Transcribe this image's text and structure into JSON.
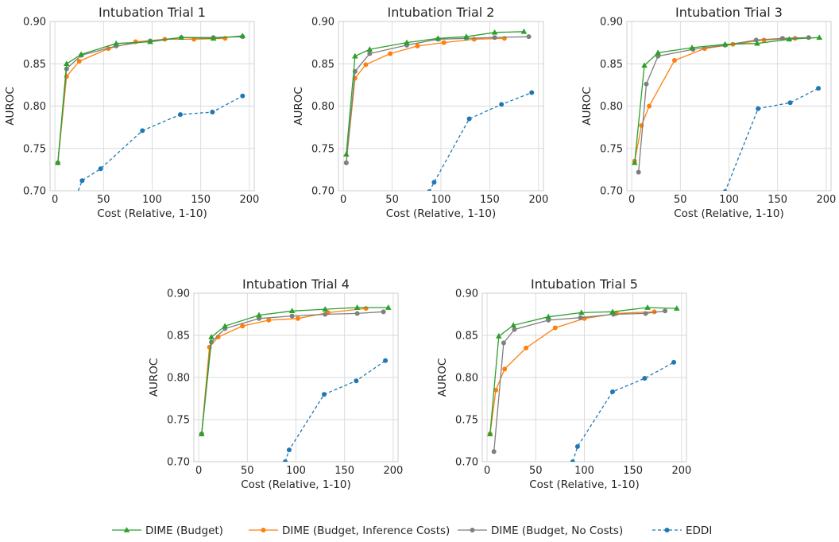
{
  "legend": [
    {
      "name": "DIME (Budget)",
      "color": "#2ca02c",
      "marker": "triangle",
      "dash": false
    },
    {
      "name": "DIME (Budget, Inference Costs)",
      "color": "#ff7f0e",
      "marker": "circle",
      "dash": false
    },
    {
      "name": "DIME (Budget, No Costs)",
      "color": "#7f7f7f",
      "marker": "circle",
      "dash": false
    },
    {
      "name": "EDDI",
      "color": "#1f77b4",
      "marker": "circle",
      "dash": true
    }
  ],
  "chart_data": [
    {
      "type": "line",
      "title": "Intubation Trial 1",
      "xlabel": "Cost (Relative, 1-10)",
      "ylabel": "AUROC",
      "xlim": [
        -5,
        205
      ],
      "ylim": [
        0.7,
        0.9
      ],
      "xticks": [
        0,
        50,
        100,
        150,
        200
      ],
      "yticks": [
        0.7,
        0.75,
        0.8,
        0.85,
        0.9
      ],
      "grid": true,
      "series": [
        {
          "name": "DIME (Budget)",
          "x": [
            3,
            12,
            27,
            63,
            98,
            130,
            163,
            193
          ],
          "y": [
            0.733,
            0.85,
            0.861,
            0.874,
            0.876,
            0.881,
            0.88,
            0.883
          ]
        },
        {
          "name": "DIME (Budget, Inference Costs)",
          "x": [
            3,
            12,
            25,
            55,
            83,
            113,
            143,
            175
          ],
          "y": [
            0.733,
            0.835,
            0.853,
            0.868,
            0.876,
            0.879,
            0.879,
            0.88
          ]
        },
        {
          "name": "DIME (Budget, No Costs)",
          "x": [
            3,
            12,
            27,
            63,
            98,
            130,
            163,
            193
          ],
          "y": [
            0.733,
            0.844,
            0.86,
            0.871,
            0.877,
            0.881,
            0.881,
            0.882
          ]
        },
        {
          "name": "EDDI",
          "x": [
            22,
            28,
            47,
            90,
            129,
            162,
            193
          ],
          "y": [
            0.694,
            0.712,
            0.726,
            0.771,
            0.79,
            0.793,
            0.812
          ]
        }
      ]
    },
    {
      "type": "line",
      "title": "Intubation Trial 2",
      "xlabel": "Cost (Relative, 1-10)",
      "ylabel": "AUROC",
      "xlim": [
        -5,
        205
      ],
      "ylim": [
        0.7,
        0.9
      ],
      "xticks": [
        0,
        50,
        100,
        150,
        200
      ],
      "yticks": [
        0.7,
        0.75,
        0.8,
        0.85,
        0.9
      ],
      "grid": true,
      "series": [
        {
          "name": "DIME (Budget)",
          "x": [
            3,
            12,
            27,
            65,
            97,
            126,
            155,
            185
          ],
          "y": [
            0.743,
            0.859,
            0.867,
            0.875,
            0.88,
            0.882,
            0.887,
            0.888
          ]
        },
        {
          "name": "DIME (Budget, Inference Costs)",
          "x": [
            3,
            12,
            23,
            48,
            76,
            103,
            134,
            165
          ],
          "y": [
            0.733,
            0.833,
            0.849,
            0.862,
            0.871,
            0.875,
            0.879,
            0.88
          ]
        },
        {
          "name": "DIME (Budget, No Costs)",
          "x": [
            3,
            12,
            27,
            65,
            97,
            126,
            155,
            190
          ],
          "y": [
            0.733,
            0.841,
            0.862,
            0.872,
            0.879,
            0.88,
            0.881,
            0.882
          ]
        },
        {
          "name": "EDDI",
          "x": [
            88,
            93,
            129,
            162,
            193
          ],
          "y": [
            0.699,
            0.71,
            0.785,
            0.802,
            0.816
          ]
        }
      ]
    },
    {
      "type": "line",
      "title": "Intubation Trial 3",
      "xlabel": "Cost (Relative, 1-10)",
      "ylabel": "AUROC",
      "xlim": [
        -5,
        205
      ],
      "ylim": [
        0.7,
        0.9
      ],
      "xticks": [
        0,
        50,
        100,
        150,
        200
      ],
      "yticks": [
        0.7,
        0.75,
        0.8,
        0.85,
        0.9
      ],
      "grid": true,
      "series": [
        {
          "name": "DIME (Budget)",
          "x": [
            3,
            13,
            27,
            62,
            96,
            129,
            162,
            193
          ],
          "y": [
            0.733,
            0.848,
            0.863,
            0.869,
            0.873,
            0.874,
            0.879,
            0.881
          ]
        },
        {
          "name": "DIME (Budget, Inference Costs)",
          "x": [
            3,
            10,
            18,
            44,
            75,
            104,
            136,
            168
          ],
          "y": [
            0.735,
            0.777,
            0.8,
            0.854,
            0.868,
            0.873,
            0.878,
            0.88
          ]
        },
        {
          "name": "DIME (Budget, No Costs)",
          "x": [
            7,
            15,
            27,
            63,
            96,
            128,
            155,
            182
          ],
          "y": [
            0.722,
            0.826,
            0.859,
            0.867,
            0.872,
            0.878,
            0.88,
            0.881
          ]
        },
        {
          "name": "EDDI",
          "x": [
            96,
            130,
            163,
            192
          ],
          "y": [
            0.699,
            0.797,
            0.804,
            0.821
          ]
        }
      ]
    },
    {
      "type": "line",
      "title": "Intubation Trial 4",
      "xlabel": "Cost (Relative, 1-10)",
      "ylabel": "AUROC",
      "xlim": [
        -5,
        205
      ],
      "ylim": [
        0.7,
        0.9
      ],
      "xticks": [
        0,
        50,
        100,
        150,
        200
      ],
      "yticks": [
        0.7,
        0.75,
        0.8,
        0.85,
        0.9
      ],
      "grid": true,
      "series": [
        {
          "name": "DIME (Budget)",
          "x": [
            3,
            13,
            27,
            62,
            96,
            130,
            163,
            195
          ],
          "y": [
            0.733,
            0.848,
            0.861,
            0.874,
            0.879,
            0.881,
            0.883,
            0.883
          ]
        },
        {
          "name": "DIME (Budget, Inference Costs)",
          "x": [
            3,
            11,
            20,
            45,
            72,
            102,
            133,
            172
          ],
          "y": [
            0.733,
            0.836,
            0.848,
            0.861,
            0.868,
            0.87,
            0.877,
            0.882
          ]
        },
        {
          "name": "DIME (Budget, No Costs)",
          "x": [
            3,
            13,
            27,
            62,
            96,
            130,
            163,
            190
          ],
          "y": [
            0.733,
            0.842,
            0.858,
            0.87,
            0.873,
            0.875,
            0.876,
            0.878
          ]
        },
        {
          "name": "EDDI",
          "x": [
            89,
            93,
            129,
            162,
            192
          ],
          "y": [
            0.7,
            0.714,
            0.78,
            0.796,
            0.82
          ]
        }
      ]
    },
    {
      "type": "line",
      "title": "Intubation Trial 5",
      "xlabel": "Cost (Relative, 1-10)",
      "ylabel": "AUROC",
      "xlim": [
        -5,
        205
      ],
      "ylim": [
        0.7,
        0.9
      ],
      "xticks": [
        0,
        50,
        100,
        150,
        200
      ],
      "yticks": [
        0.7,
        0.75,
        0.8,
        0.85,
        0.9
      ],
      "grid": true,
      "series": [
        {
          "name": "DIME (Budget)",
          "x": [
            3,
            12,
            27,
            63,
            97,
            129,
            165,
            195
          ],
          "y": [
            0.733,
            0.849,
            0.862,
            0.872,
            0.877,
            0.878,
            0.883,
            0.882
          ]
        },
        {
          "name": "DIME (Budget, Inference Costs)",
          "x": [
            3,
            9,
            18,
            40,
            70,
            100,
            133,
            172
          ],
          "y": [
            0.733,
            0.785,
            0.81,
            0.835,
            0.859,
            0.87,
            0.876,
            0.878
          ]
        },
        {
          "name": "DIME (Budget, No Costs)",
          "x": [
            7,
            17,
            28,
            63,
            96,
            130,
            163,
            183
          ],
          "y": [
            0.712,
            0.841,
            0.857,
            0.868,
            0.871,
            0.875,
            0.876,
            0.879
          ]
        },
        {
          "name": "EDDI",
          "x": [
            88,
            93,
            129,
            162,
            192
          ],
          "y": [
            0.7,
            0.718,
            0.783,
            0.799,
            0.818
          ]
        }
      ]
    }
  ]
}
